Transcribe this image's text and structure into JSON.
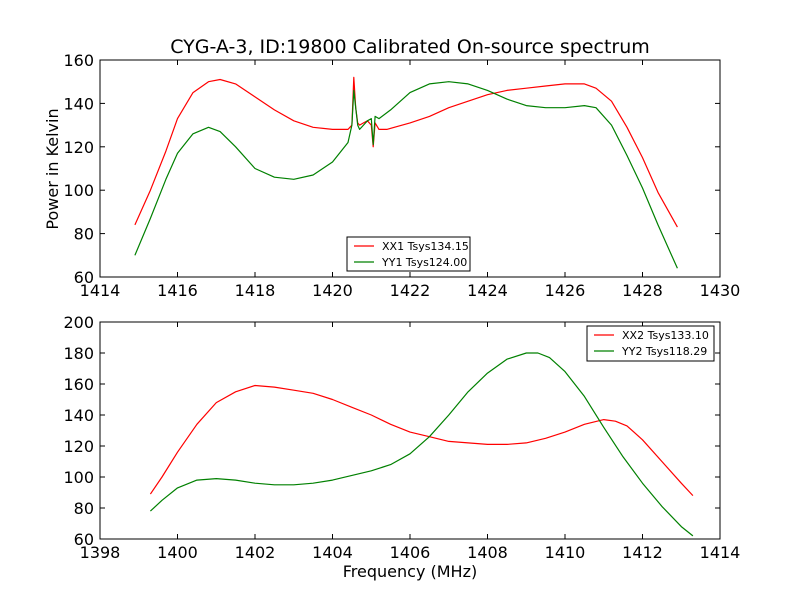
{
  "chart_data": [
    {
      "type": "line",
      "title": "CYG-A-3, ID:19800 Calibrated On-source spectrum",
      "xlabel": "",
      "ylabel": "Power in Kelvin",
      "xlim": [
        1414,
        1430
      ],
      "ylim": [
        60,
        160
      ],
      "xticks": [
        "1414",
        "1416",
        "1418",
        "1420",
        "1422",
        "1424",
        "1426",
        "1428",
        "1430"
      ],
      "yticks": [
        "60",
        "80",
        "100",
        "120",
        "140",
        "160"
      ],
      "legend_position": "lower-center",
      "grid": false,
      "series": [
        {
          "name": "XX1 Tsys134.15",
          "color": "#ff0000",
          "x": [
            1414.9,
            1415.3,
            1415.7,
            1416.0,
            1416.4,
            1416.8,
            1417.1,
            1417.5,
            1418.0,
            1418.5,
            1419.0,
            1419.5,
            1420.0,
            1420.4,
            1420.5,
            1420.55,
            1420.6,
            1420.65,
            1420.7,
            1420.8,
            1420.9,
            1421.0,
            1421.05,
            1421.1,
            1421.2,
            1421.4,
            1422.0,
            1422.5,
            1423.0,
            1423.5,
            1424.0,
            1424.5,
            1425.0,
            1425.5,
            1426.0,
            1426.5,
            1426.8,
            1427.2,
            1427.6,
            1428.0,
            1428.4,
            1428.9
          ],
          "y": [
            84,
            100,
            118,
            133,
            145,
            150,
            151,
            149,
            143,
            137,
            132,
            129,
            128,
            128,
            130,
            152,
            138,
            131,
            130,
            131,
            132,
            130,
            120,
            131,
            128,
            128,
            131,
            134,
            138,
            141,
            144,
            146,
            147,
            148,
            149,
            149,
            147,
            141,
            129,
            115,
            99,
            83
          ]
        },
        {
          "name": "YY1 Tsys124.00",
          "color": "#008000",
          "x": [
            1414.9,
            1415.3,
            1415.7,
            1416.0,
            1416.4,
            1416.8,
            1417.1,
            1417.5,
            1418.0,
            1418.5,
            1419.0,
            1419.5,
            1420.0,
            1420.4,
            1420.5,
            1420.55,
            1420.6,
            1420.65,
            1420.7,
            1420.8,
            1420.9,
            1421.0,
            1421.05,
            1421.1,
            1421.2,
            1421.5,
            1422.0,
            1422.5,
            1423.0,
            1423.5,
            1424.0,
            1424.5,
            1425.0,
            1425.5,
            1426.0,
            1426.5,
            1426.8,
            1427.2,
            1427.6,
            1428.0,
            1428.4,
            1428.9
          ],
          "y": [
            70,
            87,
            105,
            117,
            126,
            129,
            127,
            120,
            110,
            106,
            105,
            107,
            113,
            122,
            130,
            146,
            138,
            130,
            128,
            130,
            132,
            133,
            121,
            134,
            133,
            137,
            145,
            149,
            150,
            149,
            146,
            142,
            139,
            138,
            138,
            139,
            138,
            130,
            116,
            101,
            84,
            64
          ]
        }
      ]
    },
    {
      "type": "line",
      "title": "",
      "xlabel": "Frequency (MHz)",
      "ylabel": "",
      "xlim": [
        1398,
        1414
      ],
      "ylim": [
        60,
        200
      ],
      "xticks": [
        "1398",
        "1400",
        "1402",
        "1404",
        "1406",
        "1408",
        "1410",
        "1412",
        "1414"
      ],
      "yticks": [
        "60",
        "80",
        "100",
        "120",
        "140",
        "160",
        "180",
        "200"
      ],
      "legend_position": "top-right",
      "grid": false,
      "series": [
        {
          "name": "XX2 Tsys133.10",
          "color": "#ff0000",
          "x": [
            1399.3,
            1399.6,
            1400.0,
            1400.5,
            1401.0,
            1401.5,
            1402.0,
            1402.5,
            1403.0,
            1403.5,
            1404.0,
            1404.5,
            1405.0,
            1405.5,
            1406.0,
            1406.5,
            1407.0,
            1407.5,
            1408.0,
            1408.5,
            1409.0,
            1409.5,
            1410.0,
            1410.5,
            1411.0,
            1411.3,
            1411.6,
            1412.0,
            1412.5,
            1413.0,
            1413.3
          ],
          "y": [
            89,
            100,
            116,
            134,
            148,
            155,
            159,
            158,
            156,
            154,
            150,
            145,
            140,
            134,
            129,
            126,
            123,
            122,
            121,
            121,
            122,
            125,
            129,
            134,
            137,
            136,
            133,
            124,
            110,
            96,
            88
          ]
        },
        {
          "name": "YY2 Tsys118.29",
          "color": "#008000",
          "x": [
            1399.3,
            1399.6,
            1400.0,
            1400.5,
            1401.0,
            1401.5,
            1402.0,
            1402.5,
            1403.0,
            1403.5,
            1404.0,
            1404.5,
            1405.0,
            1405.5,
            1406.0,
            1406.5,
            1407.0,
            1407.5,
            1408.0,
            1408.5,
            1409.0,
            1409.3,
            1409.6,
            1410.0,
            1410.5,
            1411.0,
            1411.5,
            1412.0,
            1412.5,
            1413.0,
            1413.3
          ],
          "y": [
            78,
            85,
            93,
            98,
            99,
            98,
            96,
            95,
            95,
            96,
            98,
            101,
            104,
            108,
            115,
            126,
            140,
            155,
            167,
            176,
            180,
            180,
            177,
            168,
            152,
            132,
            113,
            96,
            81,
            68,
            62
          ]
        }
      ]
    }
  ]
}
